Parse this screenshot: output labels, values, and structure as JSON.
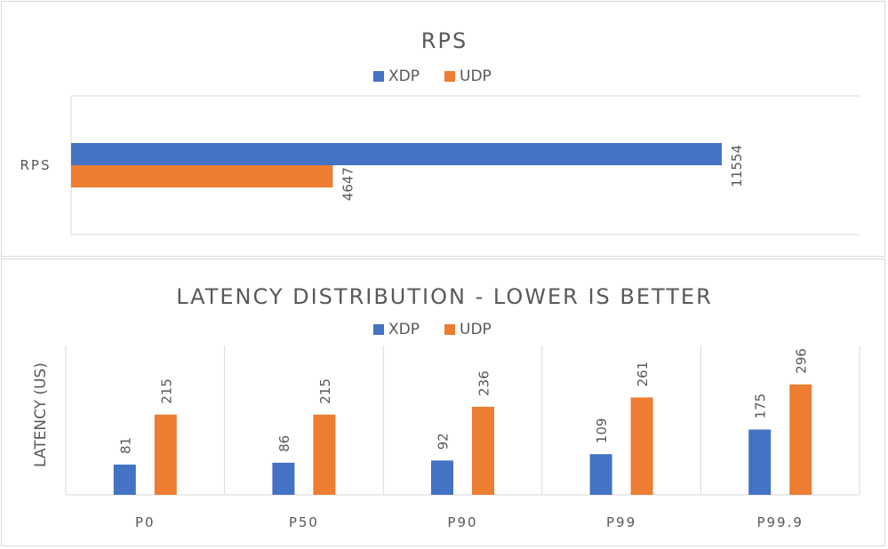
{
  "chart_data": [
    {
      "type": "bar",
      "orientation": "horizontal",
      "title": "RPS",
      "categories": [
        "RPS"
      ],
      "series": [
        {
          "name": "XDP",
          "values": [
            11554
          ],
          "color": "#4472c4"
        },
        {
          "name": "UDP",
          "values": [
            4647
          ],
          "color": "#ed7d31"
        }
      ],
      "xlim": [
        0,
        14000
      ],
      "legend": "top",
      "grid": false,
      "data_labels": true
    },
    {
      "type": "bar",
      "orientation": "vertical",
      "title": "LATENCY DISTRIBUTION - LOWER IS BETTER",
      "ylabel": "LATENCY (US)",
      "categories": [
        "P0",
        "P50",
        "P90",
        "P99",
        "P99.9"
      ],
      "series": [
        {
          "name": "XDP",
          "values": [
            81,
            86,
            92,
            109,
            175
          ],
          "color": "#4472c4"
        },
        {
          "name": "UDP",
          "values": [
            215,
            215,
            236,
            261,
            296
          ],
          "color": "#ed7d31"
        }
      ],
      "ylim": [
        0,
        400
      ],
      "legend": "top",
      "grid": "vertical category separators",
      "data_labels": true
    }
  ]
}
